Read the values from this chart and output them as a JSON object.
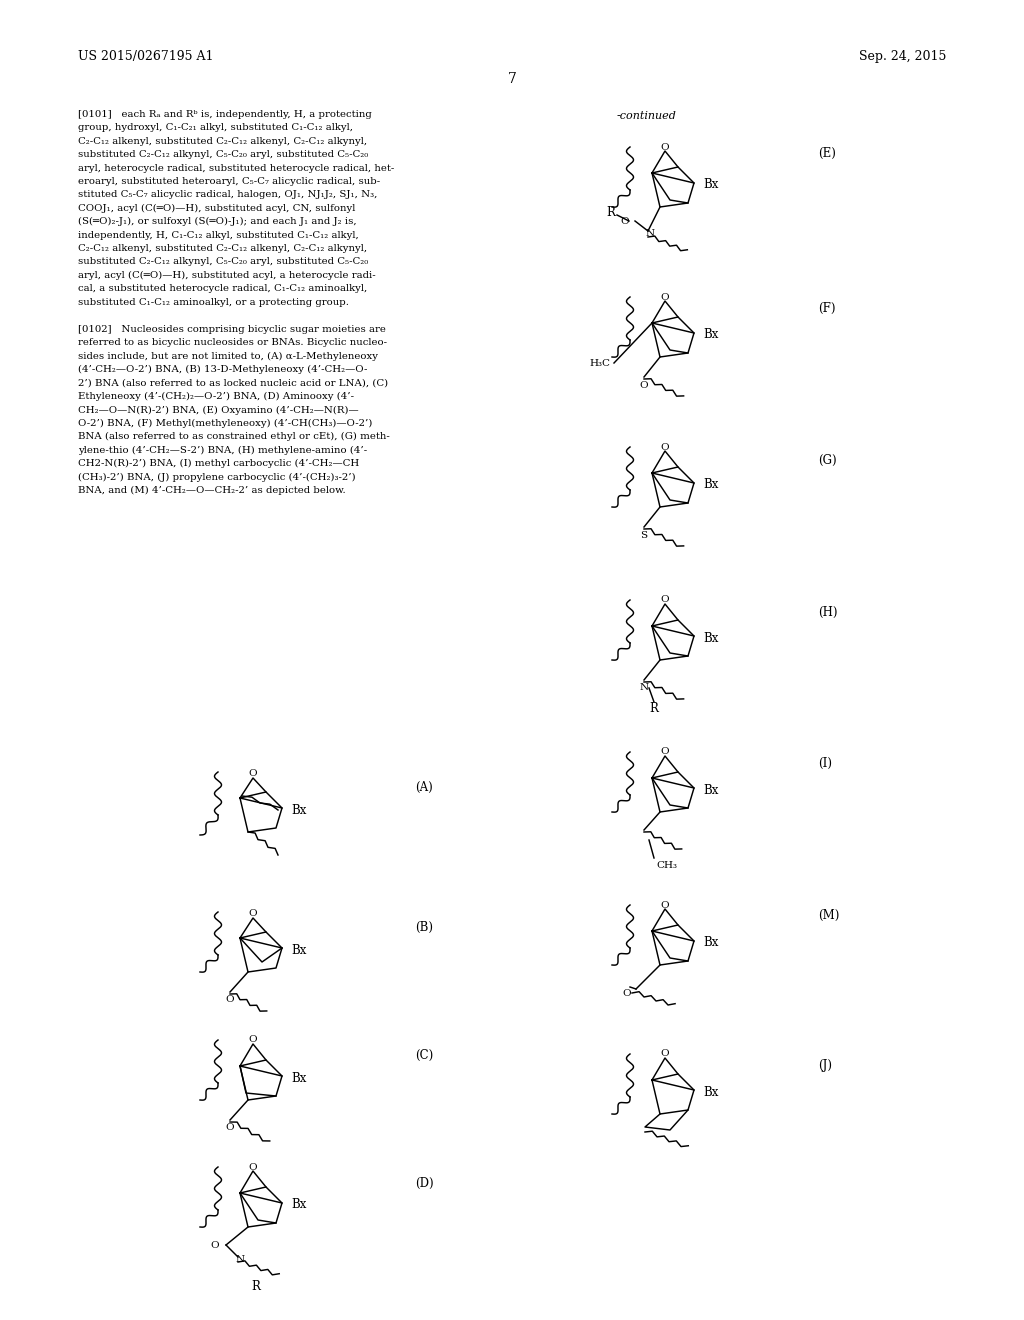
{
  "header_left": "US 2015/0267195 A1",
  "header_right": "Sep. 24, 2015",
  "page_num": "7",
  "continued": "-continued",
  "bg": "#ffffff",
  "fg": "#000000",
  "lines_0101": [
    "[0101]   each Rₐ and Rᵇ is, independently, H, a protecting",
    "group, hydroxyl, C₁-C₂₁ alkyl, substituted C₁-C₁₂ alkyl,",
    "C₂-C₁₂ alkenyl, substituted C₂-C₁₂ alkenyl, C₂-C₁₂ alkynyl,",
    "substituted C₂-C₁₂ alkynyl, C₅-C₂₀ aryl, substituted C₅-C₂₀",
    "aryl, heterocycle radical, substituted heterocycle radical, het-",
    "eroaryl, substituted heteroaryl, C₅-C₇ alicyclic radical, sub-",
    "stituted C₅-C₇ alicyclic radical, halogen, OJ₁, NJ₁J₂, SJ₁, N₃,",
    "COOJ₁, acyl (C(═O)—H), substituted acyl, CN, sulfonyl",
    "(S(═O)₂-J₁), or sulfoxyl (S(═O)-J₁); and each J₁ and J₂ is,",
    "independently, H, C₁-C₁₂ alkyl, substituted C₁-C₁₂ alkyl,",
    "C₂-C₁₂ alkenyl, substituted C₂-C₁₂ alkenyl, C₂-C₁₂ alkynyl,",
    "substituted C₂-C₁₂ alkynyl, C₅-C₂₀ aryl, substituted C₅-C₂₀",
    "aryl, acyl (C(═O)—H), substituted acyl, a heterocycle radi-",
    "cal, a substituted heterocycle radical, C₁-C₁₂ aminoalkyl,",
    "substituted C₁-C₁₂ aminoalkyl, or a protecting group."
  ],
  "lines_0102": [
    "[0102]   Nucleosides comprising bicyclic sugar moieties are",
    "referred to as bicyclic nucleosides or BNAs. Bicyclic nucleo-",
    "sides include, but are not limited to, (A) α-L-Methyleneoxy",
    "(4’-CH₂—O-2’) BNA, (B) 13-D-Methyleneoxy (4’-CH₂—O-",
    "2’) BNA (also referred to as locked nucleic acid or LNA), (C)",
    "Ethyleneoxy (4’-(CH₂)₂—O-2’) BNA, (D) Aminooxy (4’-",
    "CH₂—O—N(R)-2’) BNA, (E) Oxyamino (4’-CH₂—N(R)—",
    "O-2’) BNA, (F) Methyl(methyleneoxy) (4’-CH(CH₃)—O-2’)",
    "BNA (also referred to as constrained ethyl or cEt), (G) meth-",
    "ylene-thio (4’-CH₂—S-2’) BNA, (H) methylene-amino (4’-",
    "CH2-N(R)-2’) BNA, (I) methyl carbocyclic (4’-CH₂—CH",
    "(CH₃)-2’) BNA, (J) propylene carbocyclic (4’-(CH₂)₃-2’)",
    "BNA, and (M) 4’-CH₂—O—CH₂-2’ as depicted below."
  ]
}
